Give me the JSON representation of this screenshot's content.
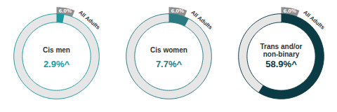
{
  "chart_data": [
    {
      "type": "pie",
      "categories": [
        "Cis men",
        "All Adults"
      ],
      "values": [
        2.9,
        6.0
      ],
      "value_labels": [
        "2.9%^",
        "6.0%"
      ],
      "colors": [
        "#1b9aa0",
        "#8f8f8f"
      ],
      "data_labels": true
    },
    {
      "type": "pie",
      "categories": [
        "Cis women",
        "All Adults"
      ],
      "values": [
        7.7,
        6.0
      ],
      "value_labels": [
        "7.7%^",
        "6.0%"
      ],
      "colors": [
        "#2b7a82",
        "#8f8f8f"
      ],
      "data_labels": true
    },
    {
      "type": "pie",
      "categories": [
        "Trans and/or non-binary",
        "All Adults"
      ],
      "values": [
        58.9,
        6.0
      ],
      "value_labels": [
        "58.9%^",
        "6.0%"
      ],
      "colors": [
        "#0b3b44",
        "#8f8f8f"
      ],
      "data_labels": true
    }
  ]
}
